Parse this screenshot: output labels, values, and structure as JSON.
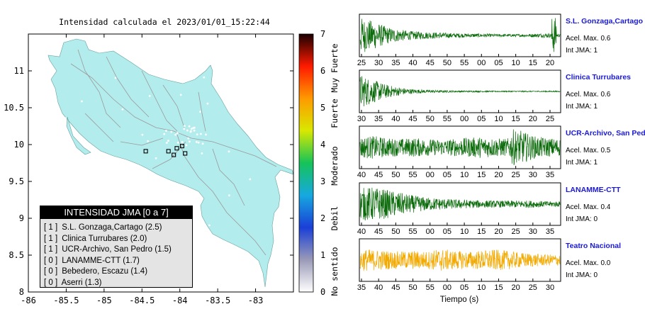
{
  "map": {
    "title": "Intensidad calculada el 2023/01/01_15:22:44",
    "x_ticks": [
      "-86",
      "-85.5",
      "-85",
      "-84.5",
      "-84",
      "-83.5",
      "-83"
    ],
    "y_ticks": [
      "8",
      "8.5",
      "9",
      "9.5",
      "10",
      "10.5",
      "11"
    ],
    "x_range": [
      -86,
      -82.5
    ],
    "y_range": [
      8,
      11.5
    ],
    "land_color": "#b3eced",
    "legend": {
      "title": "INTENSIDAD JMA [0 a 7]",
      "rows": [
        {
          "level": "[ 1 ]",
          "text": "S.L. Gonzaga,Cartago (2.5)"
        },
        {
          "level": "[ 1 ]",
          "text": "Clinica Turrubares (2.0)"
        },
        {
          "level": "[ 1 ]",
          "text": "UCR-Archivo, San Pedro (1.5)"
        },
        {
          "level": "[ 0 ]",
          "text": "LANAMME-CTT (1.7)"
        },
        {
          "level": "[ 0 ]",
          "text": "Bebedero, Escazu (1.4)"
        },
        {
          "level": "[ 0 ]",
          "text": "Aserri (1.3)"
        }
      ]
    },
    "stations": [
      {
        "lon": -84.45,
        "lat": 9.91
      },
      {
        "lon": -84.15,
        "lat": 9.91
      },
      {
        "lon": -84.08,
        "lat": 9.86
      },
      {
        "lon": -84.04,
        "lat": 9.95
      },
      {
        "lon": -83.97,
        "lat": 9.98
      },
      {
        "lon": -83.93,
        "lat": 9.88
      }
    ]
  },
  "colorbar": {
    "ticks": [
      "0",
      "1",
      "2",
      "3",
      "4",
      "5",
      "6",
      "7"
    ],
    "labels": [
      "No sentido",
      "Debil",
      "Moderado",
      "Fuerte",
      "Muy Fuerte"
    ],
    "stops": [
      "#ffffff",
      "#9a9ab8",
      "#1a3fd6",
      "#16a8e0",
      "#15c35a",
      "#d8e800",
      "#ff9a00",
      "#ff1a00",
      "#1a0000"
    ]
  },
  "chart_data": {
    "type": "line",
    "xlabel": "Tiempo (s)",
    "panels": [
      {
        "name": "S.L. Gonzaga,Cartago",
        "accel_label": "Acel. Max. 0.6",
        "jma_label": "Int JMA: 1",
        "color": "#0b6b0b",
        "tick_labels": [
          "25",
          "30",
          "35",
          "40",
          "45",
          "50",
          "55",
          "00",
          "05",
          "10",
          "15",
          "20"
        ],
        "envelope": [
          0.95,
          0.75,
          0.45,
          0.3,
          0.22,
          0.18,
          0.15,
          0.12,
          0.1,
          0.1,
          0.08,
          0.07,
          0.07,
          0.09,
          0.12,
          0.08
        ],
        "spike_at": 0.97
      },
      {
        "name": "Clinica Turrubares",
        "accel_label": "Acel. Max. 0.6",
        "jma_label": "Int JMA: 1",
        "color": "#0b6b0b",
        "tick_labels": [
          "30",
          "35",
          "40",
          "45",
          "50",
          "55",
          "00",
          "05",
          "10",
          "15",
          "20",
          "25"
        ],
        "envelope": [
          0.9,
          0.6,
          0.35,
          0.2,
          0.12,
          0.08,
          0.06,
          0.05,
          0.04,
          0.04,
          0.03,
          0.03,
          0.03,
          0.03,
          0.03,
          0.03
        ],
        "spike_at": null
      },
      {
        "name": "UCR-Archivo, San Pedro",
        "accel_label": "Acel. Max. 0.5",
        "jma_label": "Int JMA: 1",
        "color": "#0b6b0b",
        "tick_labels": [
          "40",
          "45",
          "50",
          "55",
          "00",
          "05",
          "10",
          "15",
          "20",
          "25",
          "30",
          "35"
        ],
        "envelope": [
          0.55,
          0.6,
          0.5,
          0.45,
          0.5,
          0.45,
          0.4,
          0.45,
          0.5,
          0.55,
          0.5,
          0.45,
          0.9,
          0.6,
          0.5,
          0.45
        ],
        "spike_at": 0.77
      },
      {
        "name": "LANAMME-CTT",
        "accel_label": "Acel. Max. 0.4",
        "jma_label": "Int JMA: 0",
        "color": "#0b6b0b",
        "tick_labels": [
          "40",
          "45",
          "50",
          "55",
          "00",
          "05",
          "10",
          "15",
          "20",
          "25",
          "30",
          "35"
        ],
        "envelope": [
          0.85,
          0.9,
          0.75,
          0.6,
          0.45,
          0.35,
          0.3,
          0.25,
          0.22,
          0.2,
          0.18,
          0.18,
          0.2,
          0.18,
          0.15,
          0.14
        ],
        "spike_at": null
      },
      {
        "name": "Teatro Nacional",
        "accel_label": "Acel. Max. 0.0",
        "jma_label": "Int JMA: 0",
        "color": "#f2a900",
        "tick_labels": [
          "35",
          "40",
          "45",
          "50",
          "55",
          "00",
          "05",
          "10",
          "15",
          "20",
          "25",
          "30"
        ],
        "envelope": [
          0.6,
          0.55,
          0.5,
          0.45,
          0.5,
          0.45,
          0.6,
          0.5,
          0.45,
          0.5,
          0.55,
          0.5,
          0.4,
          0.35,
          0.3,
          0.3
        ],
        "spike_at": null
      }
    ]
  }
}
